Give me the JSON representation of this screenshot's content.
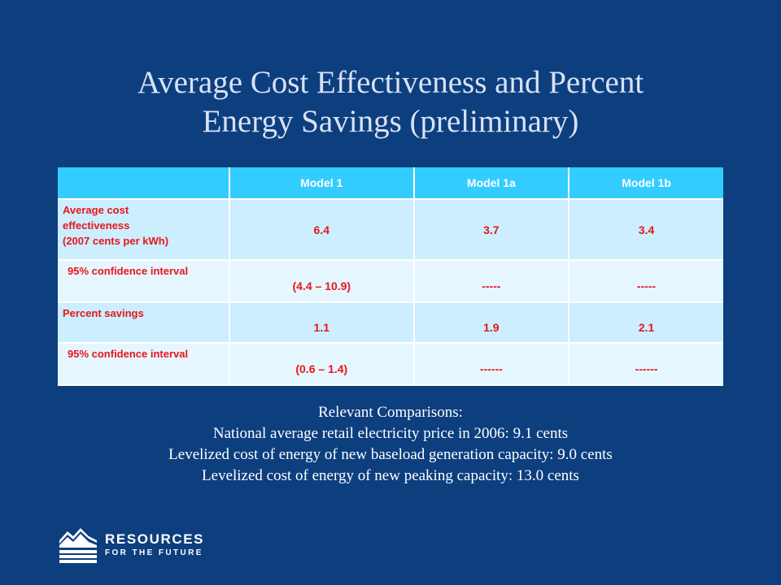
{
  "title": {
    "line1": "Average Cost Effectiveness and Percent",
    "line2": "Energy Savings (preliminary)"
  },
  "table": {
    "headers": [
      "",
      "Model 1",
      "Model 1a",
      "Model 1b"
    ],
    "rows": [
      {
        "label_lines": [
          "Average cost",
          "effectiveness",
          "(2007 cents per kWh)"
        ],
        "values": [
          "6.4",
          "3.7",
          "3.4"
        ]
      },
      {
        "label_lines": [
          "95% confidence interval"
        ],
        "values": [
          "(4.4 – 10.9)",
          "-----",
          "-----"
        ]
      },
      {
        "label_lines": [
          "Percent savings"
        ],
        "values": [
          "1.1",
          "1.9",
          "2.1"
        ]
      },
      {
        "label_lines": [
          "95% confidence interval"
        ],
        "values": [
          "(0.6 – 1.4)",
          "------",
          "------"
        ]
      }
    ]
  },
  "comparisons": {
    "heading": "Relevant Comparisons:",
    "lines": [
      "National average retail electricity price in 2006:  9.1 cents",
      "Levelized cost of energy of new baseload generation capacity:  9.0 cents",
      "Levelized cost of energy of new peaking capacity:  13.0 cents"
    ]
  },
  "logo": {
    "line1": "RESOURCES",
    "line2": "FOR THE FUTURE",
    "icon": "mountain-waves-icon"
  },
  "colors": {
    "background": "#0d3f7f",
    "header_fill": "#33ccff",
    "row_fill_dark": "#cceeff",
    "row_fill_light": "#e6f6ff",
    "cell_text": "#e8151b"
  }
}
